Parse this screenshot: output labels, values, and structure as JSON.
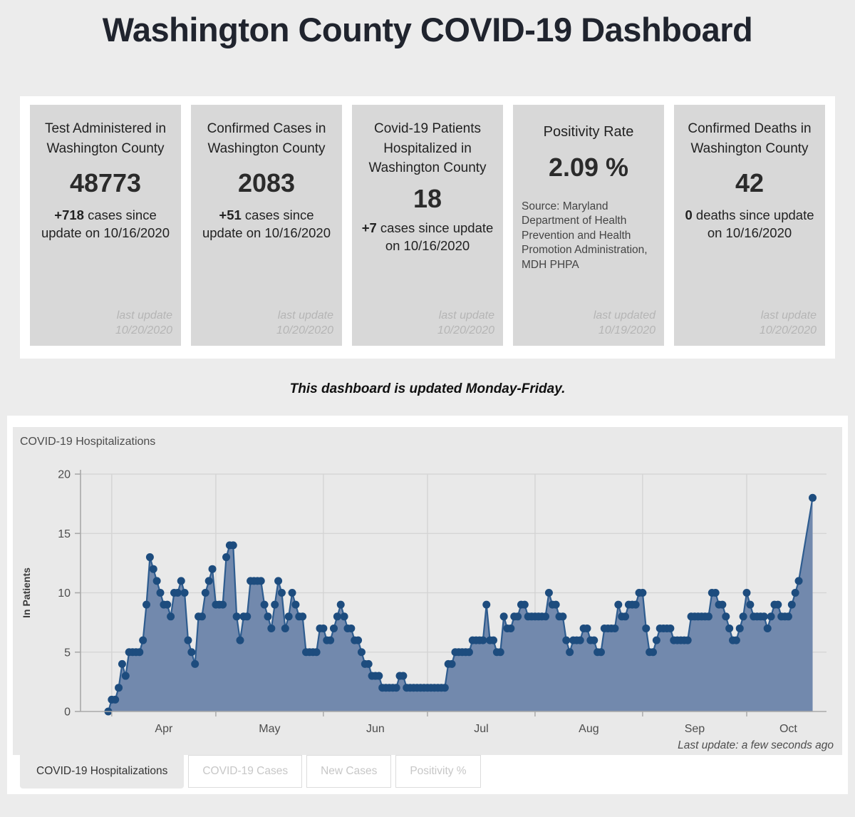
{
  "page": {
    "title": "Washington County COVID-19 Dashboard",
    "note": "This dashboard is updated Monday-Friday."
  },
  "cards": [
    {
      "title": "Test Administered in Washington County",
      "value": "48773",
      "delta": "+718",
      "delta_text": " cases since update on 10/16/2020",
      "last_update_label": "last update",
      "last_update_date": "10/20/2020"
    },
    {
      "title": "Confirmed Cases in Washington County",
      "value": "2083",
      "delta": "+51",
      "delta_text": " cases since update on 10/16/2020",
      "last_update_label": "last update",
      "last_update_date": "10/20/2020"
    },
    {
      "title": "Covid-19 Patients Hospitalized in Washington County",
      "value": "18",
      "delta": "+7",
      "delta_text": " cases since update on 10/16/2020",
      "last_update_label": "last update",
      "last_update_date": "10/20/2020"
    },
    {
      "title": "Positivity Rate",
      "value": "2.09 %",
      "source": "Source: Maryland Department of Health Prevention and Health Promotion Administration, MDH PHPA",
      "last_update_label": "last updated",
      "last_update_date": "10/19/2020"
    },
    {
      "title": "Confirmed Deaths in Washington County",
      "value": "42",
      "delta": "0",
      "delta_text": " deaths since update on 10/16/2020",
      "last_update_label": "last update",
      "last_update_date": "10/20/2020"
    }
  ],
  "chart": {
    "panel_title": "COVID-19 Hospitalizations",
    "last_update_note": "Last update: a few seconds ago",
    "tabs": [
      {
        "label": "COVID-19 Hospitalizations",
        "active": true
      },
      {
        "label": "COVID-19 Cases",
        "active": false
      },
      {
        "label": "New Cases",
        "active": false
      },
      {
        "label": "Positivity %",
        "active": false
      }
    ]
  },
  "chart_data": {
    "type": "area",
    "title": "COVID-19 Hospitalizations",
    "xlabel": "",
    "ylabel": "In Patients",
    "ylim": [
      0,
      20
    ],
    "yticks": [
      0,
      5,
      10,
      15,
      20
    ],
    "grid": true,
    "legend": false,
    "x_unit": "days",
    "x_start_date": "2020-03-31",
    "x_domain": [
      -8,
      207
    ],
    "month_ticks": [
      {
        "label": "Apr",
        "boundary": 1,
        "mid": 16
      },
      {
        "label": "May",
        "boundary": 31,
        "mid": 46.5
      },
      {
        "label": "Jun",
        "boundary": 62,
        "mid": 77
      },
      {
        "label": "Jul",
        "boundary": 92,
        "mid": 107.5
      },
      {
        "label": "Aug",
        "boundary": 123,
        "mid": 138.5
      },
      {
        "label": "Sep",
        "boundary": 154,
        "mid": 169
      },
      {
        "label": "Oct",
        "boundary": 184,
        "mid": 196
      }
    ],
    "values": [
      0,
      1,
      1,
      2,
      4,
      3,
      5,
      5,
      5,
      5,
      6,
      9,
      13,
      12,
      11,
      10,
      9,
      9,
      8,
      10,
      10,
      11,
      10,
      6,
      5,
      4,
      8,
      8,
      10,
      11,
      12,
      9,
      9,
      9,
      13,
      14,
      14,
      8,
      6,
      8,
      8,
      11,
      11,
      11,
      11,
      9,
      8,
      7,
      9,
      11,
      10,
      7,
      8,
      10,
      9,
      8,
      8,
      5,
      5,
      5,
      5,
      7,
      7,
      6,
      6,
      7,
      8,
      9,
      8,
      7,
      7,
      6,
      6,
      5,
      4,
      4,
      3,
      3,
      3,
      2,
      2,
      2,
      2,
      2,
      3,
      3,
      2,
      2,
      2,
      2,
      2,
      2,
      2,
      2,
      2,
      2,
      2,
      2,
      4,
      4,
      5,
      5,
      5,
      5,
      5,
      6,
      6,
      6,
      6,
      9,
      6,
      6,
      5,
      5,
      8,
      7,
      7,
      8,
      8,
      9,
      9,
      8,
      8,
      8,
      8,
      8,
      8,
      10,
      9,
      9,
      8,
      8,
      6,
      5,
      6,
      6,
      6,
      7,
      7,
      6,
      6,
      5,
      5,
      7,
      7,
      7,
      7,
      9,
      8,
      8,
      9,
      9,
      9,
      10,
      10,
      7,
      5,
      5,
      6,
      7,
      7,
      7,
      7,
      6,
      6,
      6,
      6,
      6,
      8,
      8,
      8,
      8,
      8,
      8,
      10,
      10,
      9,
      9,
      8,
      7,
      6,
      6,
      7,
      8,
      10,
      9,
      8,
      8,
      8,
      8,
      7,
      8,
      9,
      9,
      8,
      8,
      8,
      9,
      10,
      11,
      null,
      null,
      null,
      18
    ]
  },
  "colors": {
    "page_bg": "#ececec",
    "band_bg": "#ffffff",
    "card_bg": "#d8d8d8",
    "panel_bg": "#e9e9e9",
    "grid_line": "#d3d3d3",
    "axis_line": "#a9a9a9",
    "tick_text": "#4d4d4d",
    "area_fill": "#7289ad",
    "line": "#2e5c8f",
    "dot": "#1d4c7e",
    "inactive_tab_text": "#c7c7c7"
  }
}
